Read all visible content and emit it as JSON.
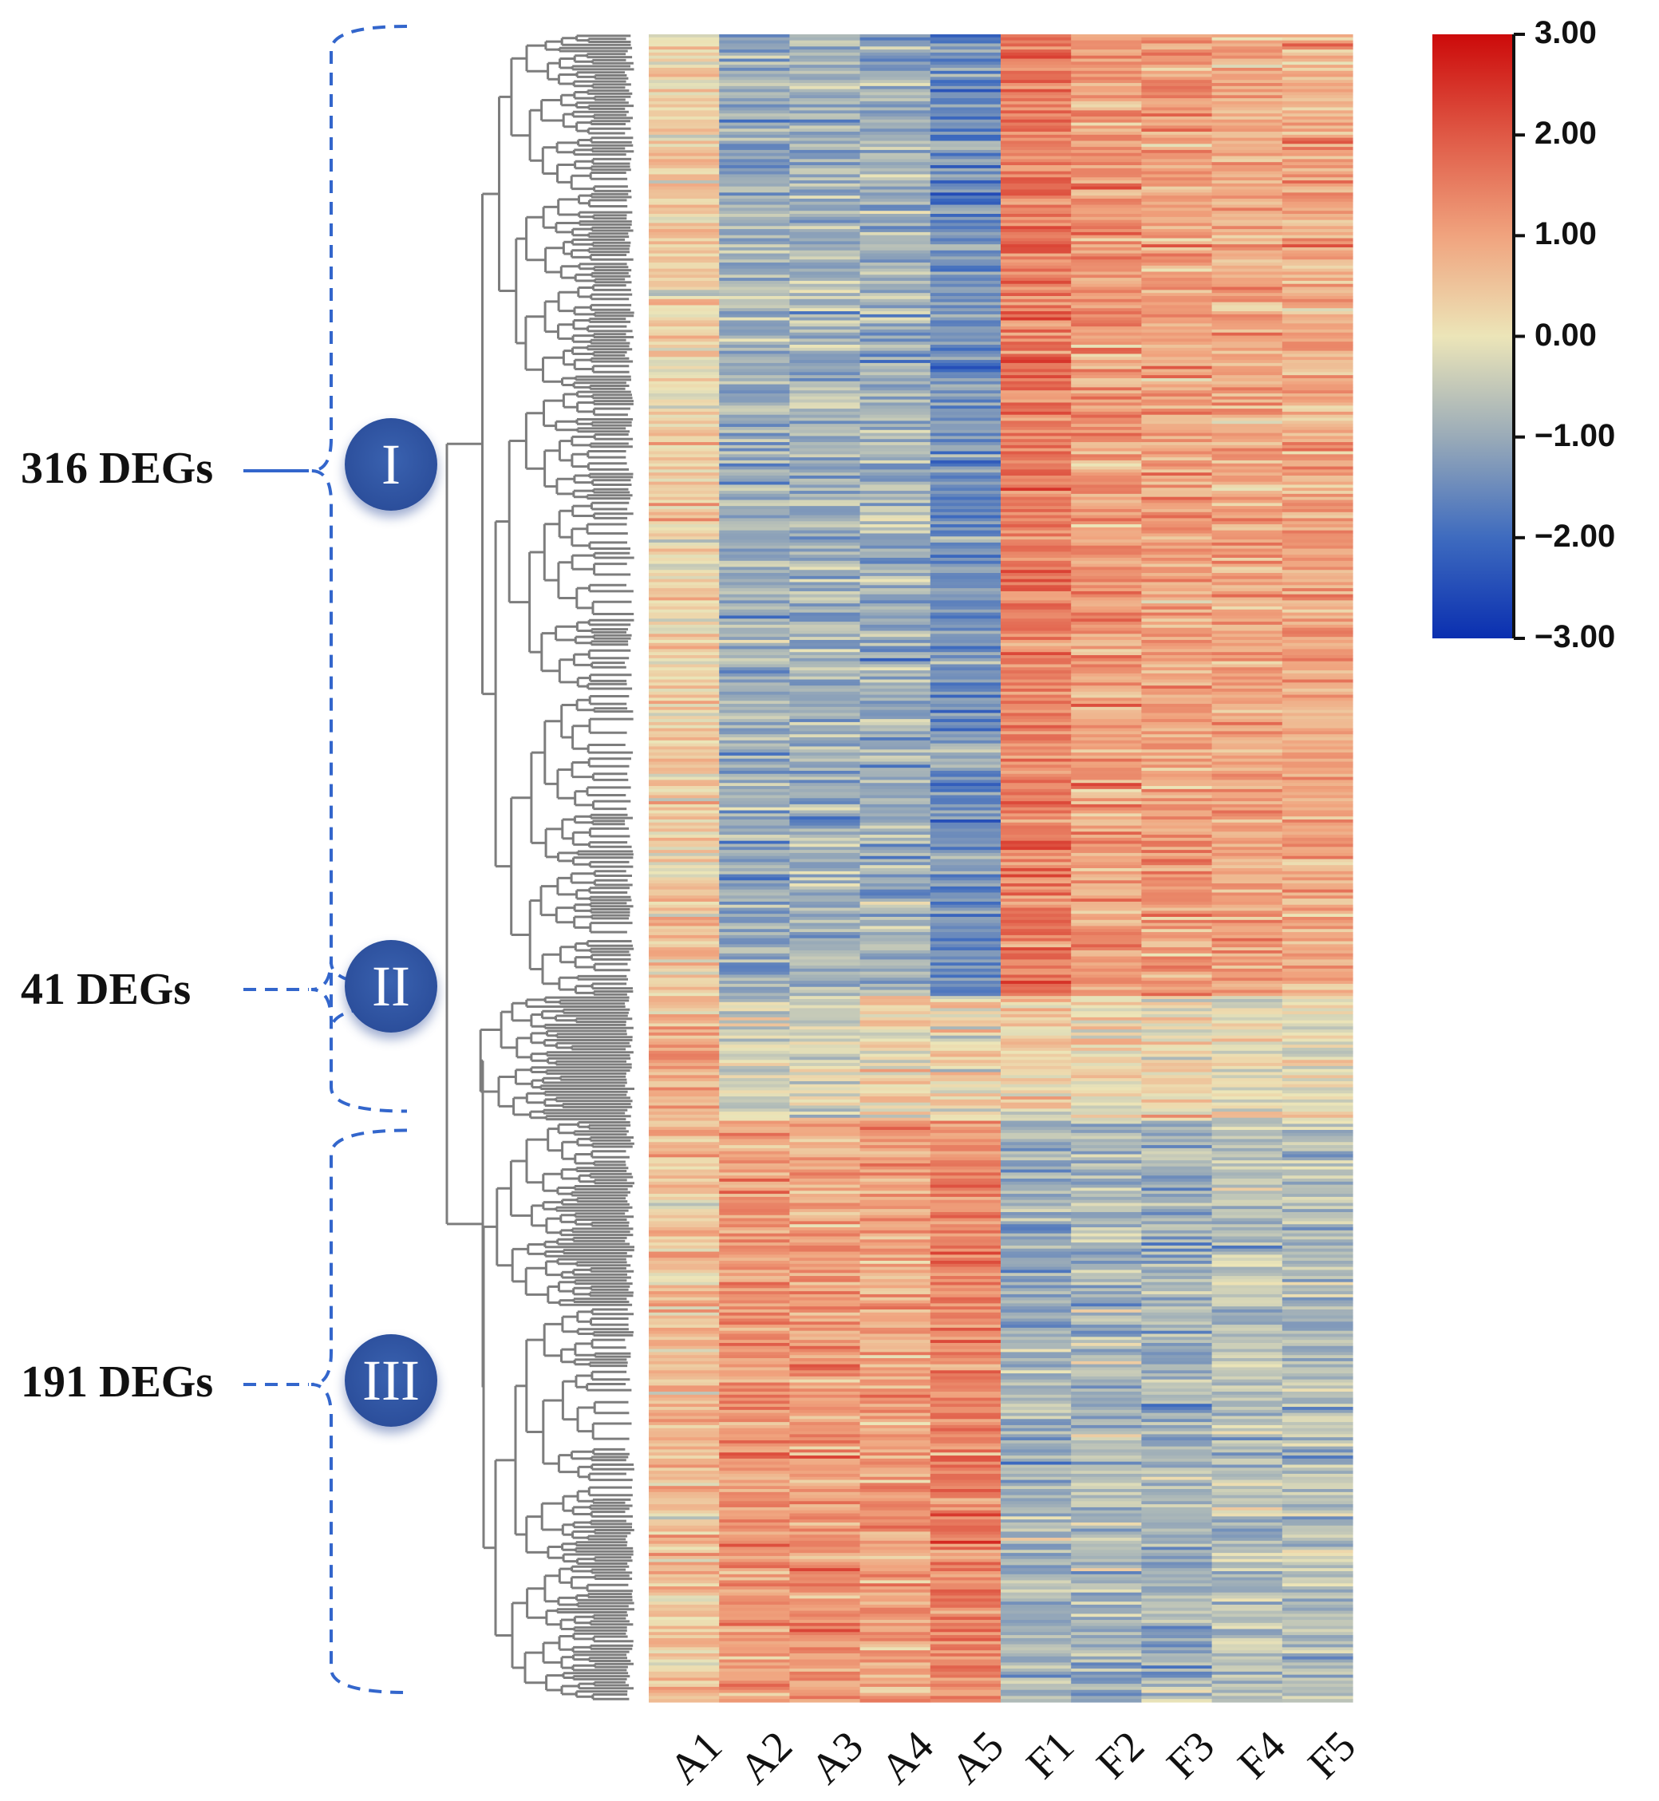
{
  "chart_data": {
    "type": "heatmap",
    "title": "",
    "columns": [
      "A1",
      "A2",
      "A3",
      "A4",
      "A5",
      "F1",
      "F2",
      "F3",
      "F4",
      "F5"
    ],
    "row_count": 548,
    "clusters": [
      {
        "id": "I",
        "label": "316 DEGs",
        "genes": 316,
        "pattern": "up in F1-F5, down in A2-A5"
      },
      {
        "id": "II",
        "label": "41 DEGs",
        "genes": 41,
        "pattern": "mixed"
      },
      {
        "id": "III",
        "label": "191 DEGs",
        "genes": 191,
        "pattern": "up in A1-A5, down in F1-F5"
      }
    ],
    "cluster_mean_zscores": {
      "I": {
        "A1": 0.3,
        "A2": -1.0,
        "A3": -0.9,
        "A4": -0.9,
        "A5": -1.4,
        "F1": 1.5,
        "F2": 1.1,
        "F3": 1.0,
        "F4": 0.9,
        "F5": 0.9
      },
      "II": {
        "A1": 0.8,
        "A2": -0.3,
        "A3": -0.3,
        "A4": 0.2,
        "A5": 0.2,
        "F1": 0.3,
        "F2": 0.2,
        "F3": 0.1,
        "F4": 0.1,
        "F5": 0.0
      },
      "III": {
        "A1": 0.5,
        "A2": 1.1,
        "A3": 1.1,
        "A4": 1.0,
        "A5": 1.4,
        "F1": -0.9,
        "F2": -0.8,
        "F3": -0.9,
        "F4": -0.6,
        "F5": -0.7
      }
    },
    "color_scale": {
      "min": -3.0,
      "max": 3.0,
      "ticks": [
        "3.00",
        "2.00",
        "1.00",
        "0.00",
        "−1.00",
        "−2.00",
        "−3.00"
      ],
      "colors": [
        "#0a2fb0",
        "#3e6bbf",
        "#9aabb8",
        "#ece5b8",
        "#f0a37e",
        "#df5845",
        "#cc0a0a"
      ]
    },
    "legend_position": "top-right",
    "has_dendrogram": true
  }
}
